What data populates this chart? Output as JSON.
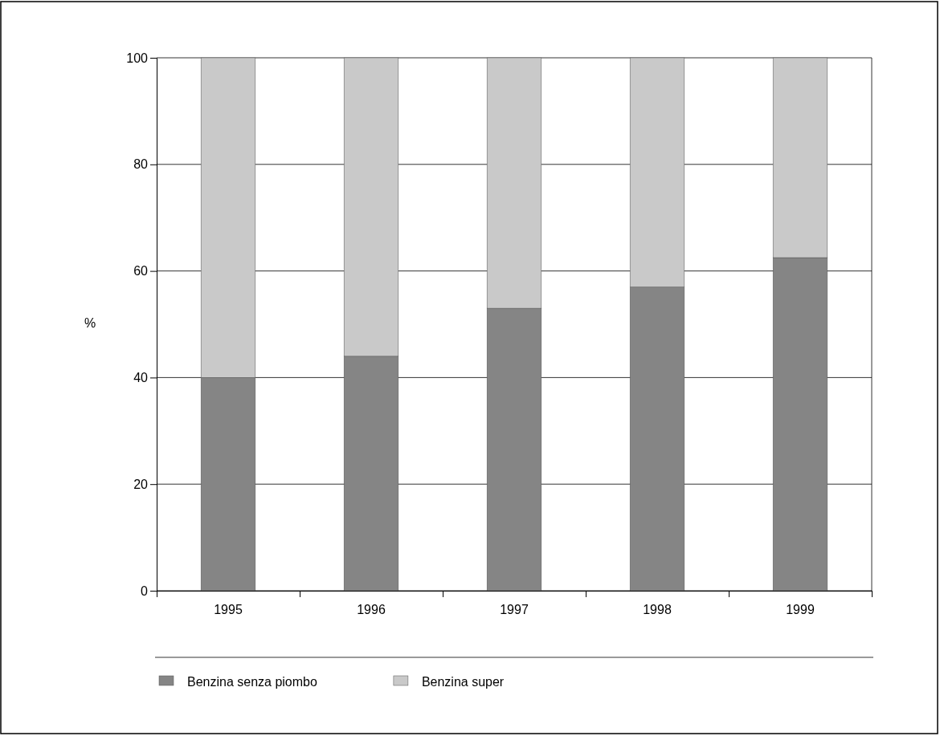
{
  "chart_data": {
    "type": "bar",
    "stacked": true,
    "ylabel": "%",
    "categories": [
      "1995",
      "1996",
      "1997",
      "1998",
      "1999"
    ],
    "series": [
      {
        "name": "Benzina senza piombo",
        "color": "#858585",
        "values": [
          40,
          44,
          53,
          57,
          62.5
        ]
      },
      {
        "name": "Benzina super",
        "color": "#c9c9c9",
        "values": [
          60,
          56,
          47,
          43,
          37.5
        ]
      }
    ],
    "ylim": [
      0,
      100
    ],
    "yticks": [
      0,
      20,
      40,
      60,
      80,
      100
    ],
    "grid": "y",
    "legend": "bottom"
  }
}
